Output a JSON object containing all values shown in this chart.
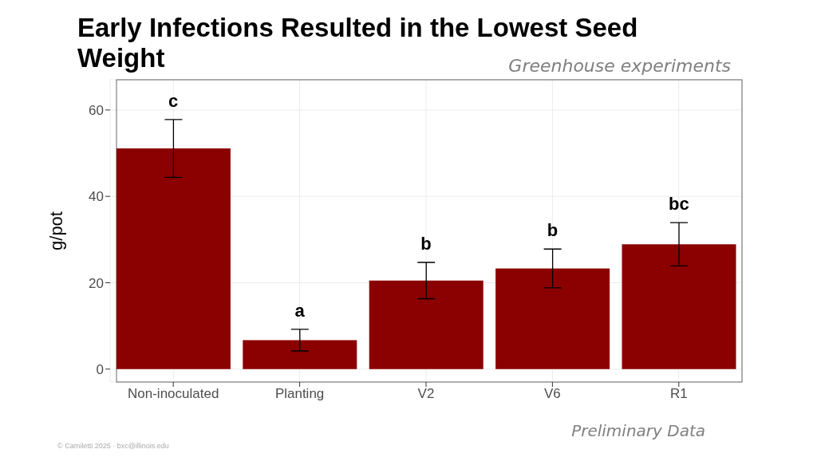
{
  "chart_data": {
    "type": "bar",
    "title": "Early Infections Resulted in the Lowest Seed Weight",
    "subtitle": "Greenhouse experiments",
    "ylabel": "g/pot",
    "categories": [
      "Non-inoculated",
      "Planting",
      "V2",
      "V6",
      "R1"
    ],
    "values": [
      51.1,
      6.7,
      20.5,
      23.3,
      28.9
    ],
    "errors": [
      6.7,
      2.5,
      4.2,
      4.5,
      5.0
    ],
    "color": "#8b0000",
    "ylim": [
      -3,
      67
    ],
    "yticks": [
      0,
      20,
      40,
      60
    ],
    "grid": true,
    "annotations": [
      "c",
      "a",
      "b",
      "b",
      "bc",
      "Preliminary Data",
      "© Camiletti 2025 · bxc@illinois.edu"
    ]
  }
}
